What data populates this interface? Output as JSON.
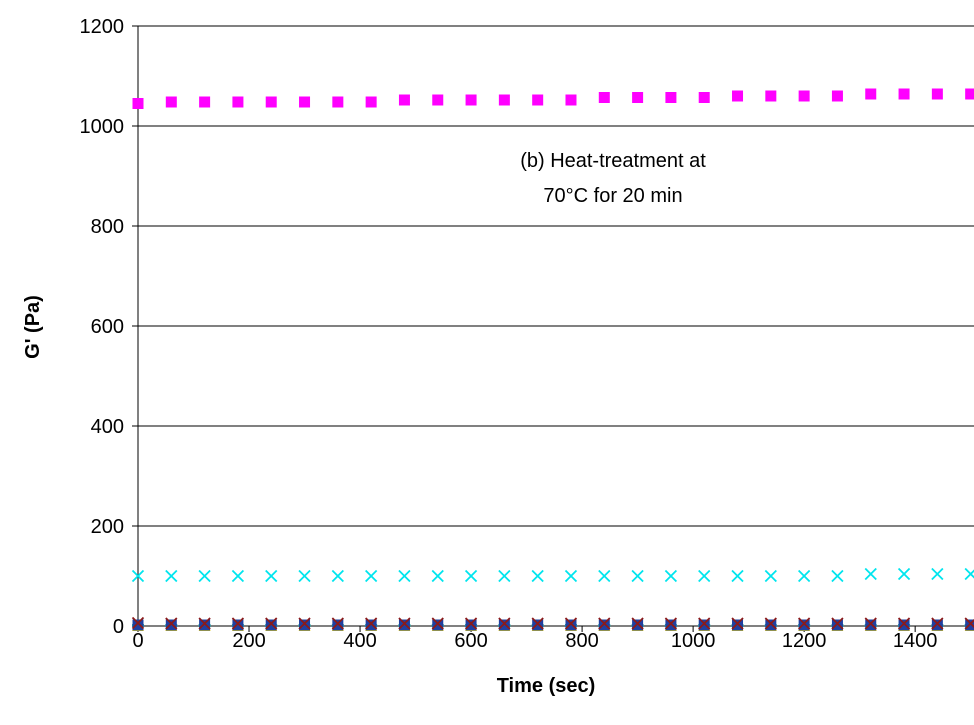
{
  "chart_data": {
    "type": "scatter",
    "title": "",
    "xlabel": "Time (sec)",
    "ylabel": "G' (Pa)",
    "xlim": [
      0,
      1500
    ],
    "ylim": [
      0,
      1200
    ],
    "x_ticks": [
      0,
      200,
      400,
      600,
      800,
      1000,
      1200,
      1400
    ],
    "y_ticks": [
      0,
      200,
      400,
      600,
      800,
      1000,
      1200
    ],
    "grid": "horizontal",
    "annotation": [
      "(b) Heat-treatment at",
      "70°C for 20 min"
    ],
    "series": [
      {
        "marker": "square",
        "color": "#FF00FF",
        "x": [
          0,
          60,
          120,
          180,
          240,
          300,
          360,
          420,
          480,
          540,
          600,
          660,
          720,
          780,
          840,
          900,
          960,
          1020,
          1080,
          1140,
          1200,
          1260,
          1320,
          1380,
          1440,
          1500
        ],
        "y": [
          1045,
          1048,
          1048,
          1048,
          1048,
          1048,
          1048,
          1048,
          1052,
          1052,
          1052,
          1052,
          1052,
          1052,
          1057,
          1057,
          1057,
          1057,
          1060,
          1060,
          1060,
          1060,
          1064,
          1064,
          1064,
          1064
        ]
      },
      {
        "marker": "x",
        "color": "#00E5EE",
        "x": [
          0,
          60,
          120,
          180,
          240,
          300,
          360,
          420,
          480,
          540,
          600,
          660,
          720,
          780,
          840,
          900,
          960,
          1020,
          1080,
          1140,
          1200,
          1260,
          1320,
          1380,
          1440,
          1500
        ],
        "y": [
          100,
          100,
          100,
          100,
          100,
          100,
          100,
          100,
          100,
          100,
          100,
          100,
          100,
          100,
          100,
          100,
          100,
          100,
          100,
          100,
          100,
          100,
          104,
          104,
          104,
          104
        ]
      },
      {
        "marker": "x",
        "color": "#8B1A1A",
        "x": [
          0,
          60,
          120,
          180,
          240,
          300,
          360,
          420,
          480,
          540,
          600,
          660,
          720,
          780,
          840,
          900,
          960,
          1020,
          1080,
          1140,
          1200,
          1260,
          1320,
          1380,
          1440,
          1500
        ],
        "y": [
          6,
          5,
          5,
          5,
          5,
          5,
          5,
          5,
          5,
          5,
          5,
          5,
          5,
          5,
          5,
          5,
          5,
          5,
          5,
          5,
          5,
          5,
          5,
          5,
          5,
          5
        ]
      },
      {
        "marker": "square",
        "color": "#1F3FA0",
        "x": [
          0,
          60,
          120,
          180,
          240,
          300,
          360,
          420,
          480,
          540,
          600,
          660,
          720,
          780,
          840,
          900,
          960,
          1020,
          1080,
          1140,
          1200,
          1260,
          1320,
          1380,
          1440,
          1500
        ],
        "y": [
          2,
          2,
          2,
          2,
          2,
          2,
          2,
          2,
          2,
          2,
          2,
          2,
          2,
          2,
          2,
          2,
          2,
          2,
          2,
          2,
          2,
          2,
          2,
          2,
          2,
          2
        ]
      },
      {
        "marker": "triangle",
        "color": "#FFE000",
        "x": [
          0,
          60,
          120,
          180,
          240,
          300,
          360,
          420,
          480,
          540,
          600,
          660,
          720,
          780,
          840,
          900,
          960,
          1020,
          1080,
          1140,
          1200,
          1260,
          1320,
          1380,
          1440,
          1500
        ],
        "y": [
          0,
          0,
          0,
          0,
          0,
          0,
          0,
          0,
          0,
          0,
          0,
          0,
          0,
          0,
          0,
          0,
          0,
          0,
          0,
          0,
          0,
          0,
          0,
          0,
          0,
          0
        ]
      },
      {
        "marker": "dash",
        "color": "#20B2AA",
        "x": [
          0,
          60,
          120,
          180,
          240,
          300,
          360,
          420,
          480,
          540,
          600,
          660,
          720,
          780,
          840,
          900,
          960,
          1020,
          1080,
          1140,
          1200,
          1260,
          1320,
          1380,
          1440,
          1500
        ],
        "y": [
          1,
          1,
          1,
          1,
          1,
          1,
          1,
          1,
          1,
          1,
          1,
          1,
          1,
          1,
          1,
          1,
          1,
          1,
          1,
          1,
          1,
          1,
          1,
          1,
          1,
          1
        ]
      }
    ]
  }
}
